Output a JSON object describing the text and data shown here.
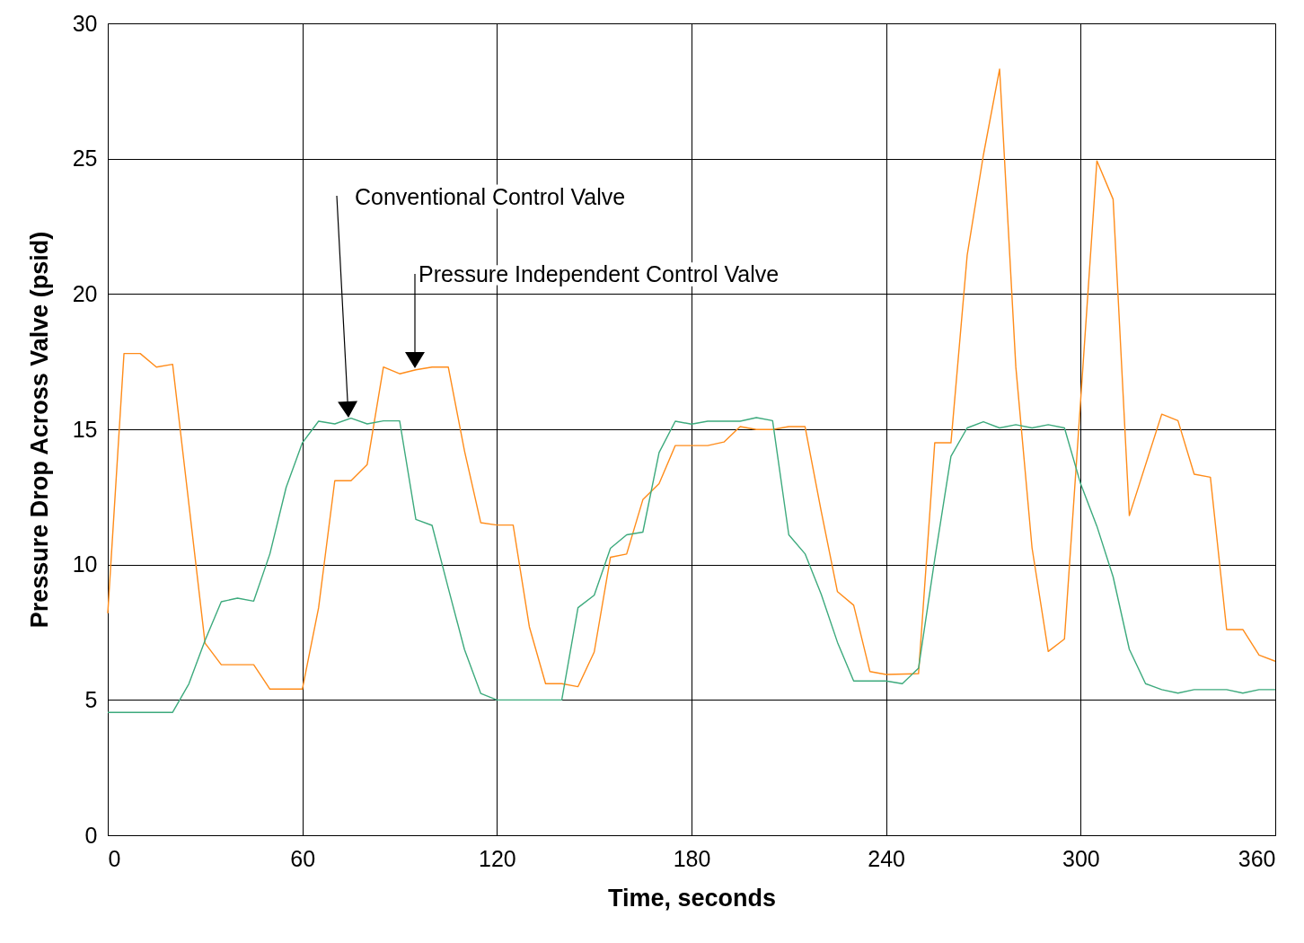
{
  "chart_data": {
    "type": "line",
    "xlabel": "Time, seconds",
    "ylabel": "Pressure Drop Across Valve (psid)",
    "xlim": [
      0,
      360
    ],
    "xticks": [
      0,
      60,
      120,
      180,
      240,
      300,
      360
    ],
    "ylim": [
      0,
      30
    ],
    "yticks": [
      0,
      5,
      10,
      15,
      20,
      25,
      30
    ],
    "grid": true,
    "marker": "none",
    "line_style": "solid",
    "series": [
      {
        "color": "#ff8c1a",
        "x": [
          0,
          5,
          10,
          15,
          20,
          30,
          35,
          45,
          50,
          60,
          65,
          70,
          75,
          80,
          85,
          90,
          95,
          100,
          105,
          110,
          115,
          120,
          125,
          130,
          135,
          140,
          145,
          150,
          155,
          160,
          165,
          170,
          175,
          185,
          190,
          195,
          200,
          205,
          210,
          215,
          220,
          225,
          230,
          235,
          240,
          250,
          255,
          260,
          265,
          270,
          275,
          280,
          285,
          290,
          295,
          305,
          310,
          315,
          325,
          330,
          335,
          340,
          345,
          350,
          355,
          360
        ],
        "values": [
          8.2,
          17.8,
          17.8,
          17.3,
          17.4,
          7.1,
          6.3,
          6.3,
          5.4,
          5.4,
          8.4,
          13.1,
          13.1,
          13.7,
          17.3,
          17.05,
          17.2,
          17.3,
          17.3,
          14.2,
          11.55,
          11.46,
          11.46,
          7.7,
          5.6,
          5.6,
          5.49,
          6.77,
          10.27,
          10.39,
          12.4,
          12.99,
          14.4,
          14.4,
          14.53,
          15.1,
          14.99,
          14.99,
          15.1,
          15.1,
          11.97,
          9.0,
          8.5,
          6.05,
          5.94,
          5.97,
          14.5,
          14.5,
          21.43,
          25.13,
          28.31,
          17.31,
          10.62,
          6.79,
          7.25,
          24.92,
          23.5,
          11.81,
          15.56,
          15.32,
          13.34,
          13.23,
          7.6,
          7.6,
          6.66,
          6.43
        ]
      },
      {
        "color": "#3daa7d",
        "x": [
          0,
          20,
          25,
          30,
          35,
          40,
          45,
          50,
          55,
          60,
          65,
          70,
          75,
          80,
          85,
          90,
          95,
          100,
          105,
          110,
          115,
          120,
          140,
          145,
          150,
          155,
          160,
          165,
          170,
          175,
          180,
          185,
          190,
          195,
          200,
          205,
          210,
          215,
          220,
          225,
          230,
          240,
          245,
          250,
          255,
          260,
          265,
          270,
          275,
          280,
          285,
          290,
          295,
          300,
          305,
          310,
          315,
          320,
          325,
          330,
          335,
          340,
          345,
          350,
          355,
          360
        ],
        "values": [
          4.54,
          4.54,
          5.59,
          7.2,
          8.63,
          8.76,
          8.65,
          10.4,
          12.85,
          14.5,
          15.3,
          15.2,
          15.41,
          15.2,
          15.31,
          15.31,
          11.67,
          11.45,
          9.13,
          6.86,
          5.24,
          5.0,
          5.0,
          8.41,
          8.87,
          10.6,
          11.1,
          11.2,
          14.14,
          15.3,
          15.19,
          15.3,
          15.3,
          15.3,
          15.43,
          15.32,
          11.1,
          10.4,
          8.9,
          7.13,
          5.7,
          5.7,
          5.6,
          6.17,
          10.2,
          14.0,
          15.05,
          15.28,
          15.05,
          15.17,
          15.05,
          15.17,
          15.05,
          12.98,
          11.42,
          9.55,
          6.87,
          5.6,
          5.38,
          5.25,
          5.38,
          5.38,
          5.38,
          5.25,
          5.38,
          5.38
        ]
      }
    ],
    "annotations": [
      "Conventional Control Valve",
      "Pressure Independent Control Valve"
    ]
  }
}
